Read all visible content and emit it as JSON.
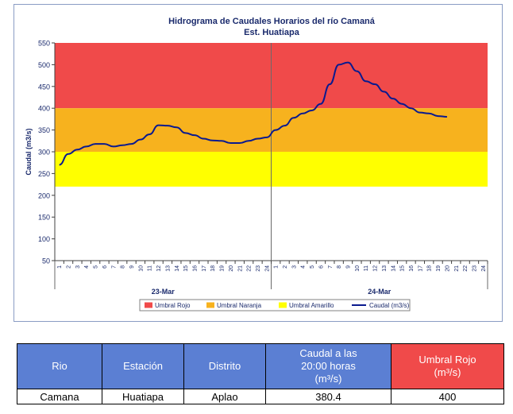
{
  "chart_data": {
    "type": "line",
    "title": "Hidrograma de Caudales Horarios del río Camaná",
    "subtitle": "Est. Huatiapa",
    "ylabel": "Caudal  (m3/s)",
    "ylim": [
      50,
      550
    ],
    "yticks": [
      50,
      100,
      150,
      200,
      250,
      300,
      350,
      400,
      450,
      500,
      550
    ],
    "grid": false,
    "legend_position": "bottom",
    "x_ticks_day1": [
      "1",
      "2",
      "3",
      "4",
      "5",
      "6",
      "7",
      "8",
      "9",
      "10",
      "11",
      "12",
      "13",
      "14",
      "15",
      "16",
      "17",
      "18",
      "19",
      "20",
      "21",
      "22",
      "23",
      "24"
    ],
    "x_ticks_day2": [
      "1",
      "2",
      "3",
      "4",
      "5",
      "6",
      "7",
      "8",
      "9",
      "10",
      "11",
      "12",
      "13",
      "14",
      "15",
      "16",
      "17",
      "18",
      "19",
      "20",
      "21",
      "22",
      "23",
      "24"
    ],
    "day_labels": [
      "23-Mar",
      "24-Mar"
    ],
    "bands": [
      {
        "name": "Umbral Rojo",
        "from": 400,
        "to": 550,
        "color": "#f04a4a"
      },
      {
        "name": "Umbral Naranja",
        "from": 300,
        "to": 400,
        "color": "#f7b21e"
      },
      {
        "name": "Umbral Amarillo",
        "from": 220,
        "to": 300,
        "color": "#ffff00"
      }
    ],
    "series": [
      {
        "name": "Caudal (m3/s)",
        "color": "#0a1a8f",
        "values": [
          270,
          295,
          305,
          312,
          318,
          318,
          312,
          315,
          318,
          328,
          340,
          361,
          360,
          356,
          343,
          338,
          330,
          326,
          325,
          320,
          320,
          325,
          330,
          333,
          350,
          360,
          378,
          388,
          395,
          410,
          455,
          500,
          505,
          485,
          462,
          455,
          438,
          422,
          410,
          400,
          390,
          388,
          382,
          380.4
        ]
      }
    ]
  },
  "legend": [
    {
      "label": "Umbral Rojo",
      "color": "#f04a4a",
      "kind": "box"
    },
    {
      "label": "Umbral Naranja",
      "color": "#f7b21e",
      "kind": "box"
    },
    {
      "label": "Umbral Amarillo",
      "color": "#ffff00",
      "kind": "box"
    },
    {
      "label": "Caudal (m3/s)",
      "color": "#0a1a8f",
      "kind": "line"
    }
  ],
  "table": {
    "headers": {
      "rio": "Rio",
      "estacion": "Estación",
      "distrito": "Distrito",
      "caudal_line1": "Caudal a las",
      "caudal_line2": "20:00 horas",
      "caudal_unit": "(m³/s)",
      "umbral_line1": "Umbral Rojo",
      "umbral_unit": "(m³/s)"
    },
    "row": {
      "rio": "Camana",
      "estacion": "Huatiapa",
      "distrito": "Aplao",
      "caudal": "380.4",
      "umbral": "400"
    }
  }
}
